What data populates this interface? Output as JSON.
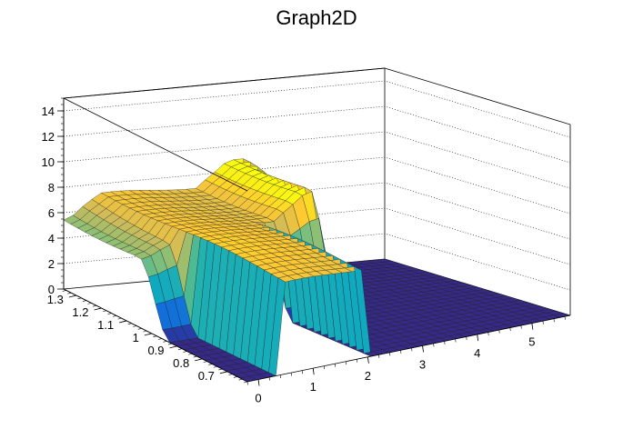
{
  "chart_data": {
    "type": "surface",
    "title": "Graph2D",
    "xlabel": "",
    "ylabel": "",
    "zlabel": "",
    "x_range": [
      -0.2,
      5.7
    ],
    "y_range": [
      0.62,
      1.35
    ],
    "z_range": [
      0,
      15
    ],
    "x_ticks": [
      0,
      1,
      2,
      3,
      4,
      5
    ],
    "y_ticks": [
      0.7,
      0.8,
      0.9,
      1,
      1.1,
      1.2,
      1.3
    ],
    "z_ticks": [
      0,
      2,
      4,
      6,
      8,
      10,
      12,
      14
    ],
    "x_tick_labels": [
      "0",
      "1",
      "2",
      "3",
      "4",
      "5"
    ],
    "y_tick_labels": [
      "0.7",
      "0.8",
      "0.9",
      "1",
      "1.1",
      "1.2",
      "1.3"
    ],
    "z_tick_labels": [
      "0",
      "2",
      "4",
      "6",
      "8",
      "10",
      "12",
      "14"
    ],
    "grid": true,
    "palette": [
      "#352a87",
      "#0f5cdd",
      "#1481d6",
      "#06a4ca",
      "#2eb7a4",
      "#87bf77",
      "#d1bb59",
      "#fec832",
      "#f9fb0e"
    ],
    "surface_description": "Plateau near z=7-8 for x from about 0.35 to 2.05 and y above about 0.95; tilted shoulder rising from z=5.5 at low x to about z=9 at x=2.3; surface falls to 0 for x above about 3.2 and for y below about 0.95 outside the plateau walls."
  }
}
